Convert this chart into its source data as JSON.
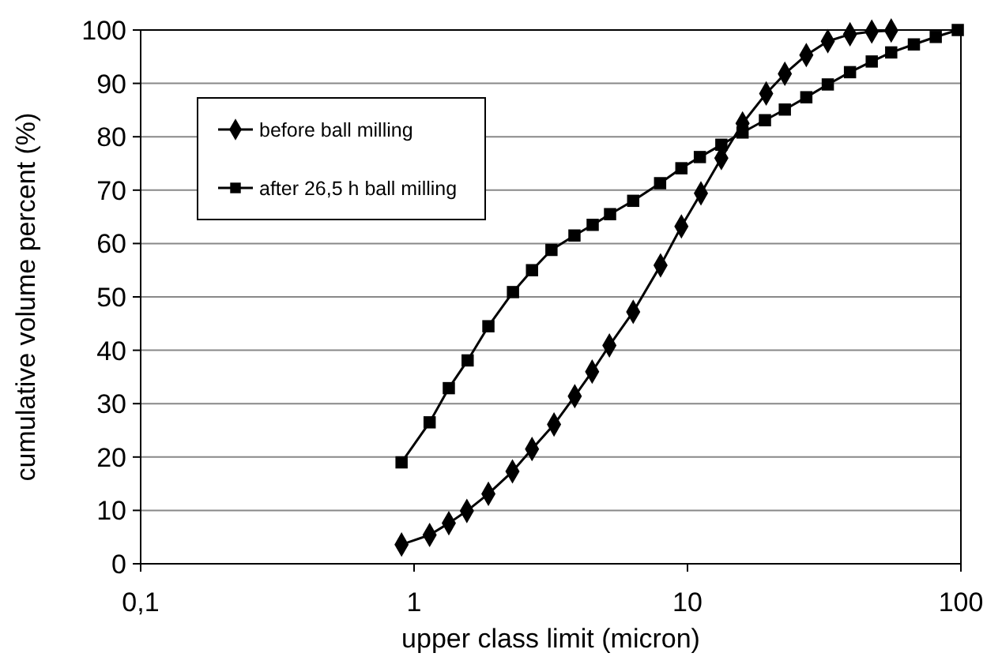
{
  "chart_data": {
    "type": "line",
    "xlabel": "upper class limit (micron)",
    "ylabel": "cumulative volume percent (%)",
    "log": "x",
    "xlim": [
      0.1,
      100
    ],
    "xticks": [
      {
        "value": 0.1,
        "label": "0,1"
      },
      1,
      10,
      100
    ],
    "ylim": [
      0,
      100
    ],
    "yticks": [
      0,
      10,
      20,
      30,
      40,
      50,
      60,
      70,
      80,
      90,
      100
    ],
    "grid": "y",
    "legend": "top left",
    "line_style": "solid",
    "series": [
      {
        "name": "before ball milling",
        "color": "#000000",
        "marker": "diamond",
        "x": [
          0.9,
          1.14,
          1.34,
          1.56,
          1.87,
          2.29,
          2.7,
          3.25,
          3.87,
          4.48,
          5.18,
          6.33,
          7.97,
          9.5,
          11.2,
          13.3,
          15.9,
          19.4,
          22.7,
          27.2,
          32.6,
          39.3,
          47.2,
          55.6
        ],
        "values": [
          3.6,
          5.4,
          7.6,
          9.9,
          13.1,
          17.3,
          21.5,
          26.1,
          31.4,
          36,
          40.9,
          47.2,
          55.9,
          63.2,
          69.4,
          76,
          82.5,
          88.1,
          91.8,
          95.3,
          97.9,
          99.2,
          99.7,
          99.9
        ]
      },
      {
        "name": "after 26,5 h ball milling",
        "color": "#000000",
        "marker": "square",
        "x": [
          0.9,
          1.14,
          1.34,
          1.57,
          1.87,
          2.3,
          2.7,
          3.18,
          3.86,
          4.5,
          5.21,
          6.33,
          7.94,
          9.5,
          11.1,
          13.3,
          15.9,
          19.2,
          22.7,
          27.2,
          32.6,
          39.3,
          47.2,
          55.6,
          67.3,
          80.9,
          97.4
        ],
        "values": [
          19,
          26.5,
          32.9,
          38.1,
          44.5,
          50.9,
          55,
          58.8,
          61.5,
          63.5,
          65.5,
          68,
          71.3,
          74.1,
          76.2,
          78.5,
          80.8,
          83.1,
          85.1,
          87.4,
          89.8,
          92.1,
          94.1,
          95.8,
          97.3,
          98.7,
          100
        ]
      }
    ]
  }
}
